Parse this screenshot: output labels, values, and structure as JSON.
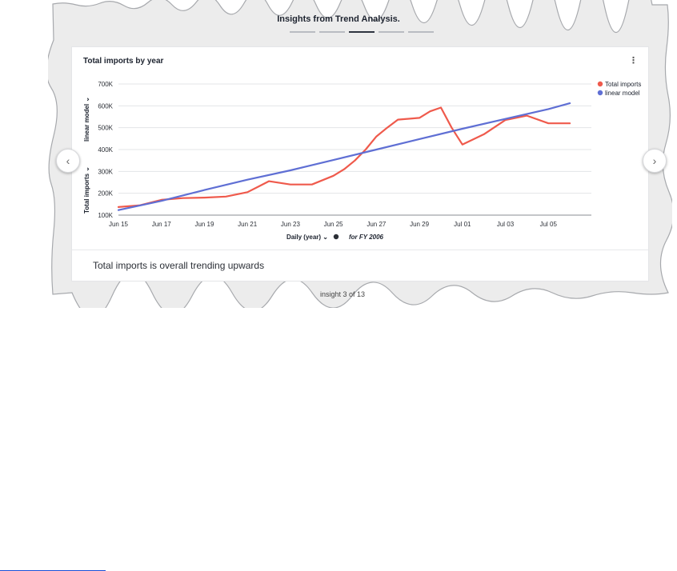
{
  "panel": {
    "title": "Insights from Trend Analysis.",
    "dots": [
      false,
      false,
      true,
      false,
      false
    ]
  },
  "card": {
    "title": "Total imports by year",
    "menu_icon": "kebab-icon",
    "summary": "Total imports is overall trending upwards"
  },
  "footer": {
    "text": "insight 3 of 13"
  },
  "nav": {
    "prev_icon": "chevron-left-icon",
    "next_icon": "chevron-right-icon"
  },
  "chart_data": {
    "type": "line",
    "title": "",
    "xlabel": "Daily (year)",
    "xlabel_note": "for FY 2006",
    "ylabel_primary": "Total imports",
    "ylabel_secondary": "linear model",
    "ylim": [
      100000,
      700000
    ],
    "yticks": [
      100000,
      200000,
      300000,
      400000,
      500000,
      600000,
      700000
    ],
    "ytick_labels": [
      "100K",
      "200K",
      "300K",
      "400K",
      "500K",
      "600K",
      "700K"
    ],
    "xlim": [
      0,
      22.0
    ],
    "xticks": [
      0,
      2,
      4,
      6,
      8,
      10,
      12,
      14,
      16,
      18,
      20
    ],
    "xtick_labels": [
      "Jun 15",
      "Jun 17",
      "Jun 19",
      "Jun 21",
      "Jun 23",
      "Jun 25",
      "Jun 27",
      "Jun 29",
      "Jul 01",
      "Jul 03",
      "Jul 05"
    ],
    "grid": true,
    "legend_position": "top-right",
    "series": [
      {
        "name": "Total imports",
        "color": "#ef5a4c",
        "points": [
          [
            0,
            137000
          ],
          [
            1,
            145000
          ],
          [
            2,
            170000
          ],
          [
            3,
            178000
          ],
          [
            4,
            180000
          ],
          [
            5,
            185000
          ],
          [
            6,
            205000
          ],
          [
            6.5,
            230000
          ],
          [
            7,
            255000
          ],
          [
            8,
            240000
          ],
          [
            9,
            240000
          ],
          [
            10,
            280000
          ],
          [
            10.5,
            310000
          ],
          [
            11,
            350000
          ],
          [
            11.5,
            400000
          ],
          [
            12,
            460000
          ],
          [
            12.5,
            500000
          ],
          [
            13,
            537000
          ],
          [
            14,
            545000
          ],
          [
            14.5,
            575000
          ],
          [
            15,
            592000
          ],
          [
            15.5,
            500000
          ],
          [
            16,
            423000
          ],
          [
            17,
            470000
          ],
          [
            18,
            535000
          ],
          [
            19,
            555000
          ],
          [
            20,
            520000
          ],
          [
            21,
            520000
          ]
        ]
      },
      {
        "name": "linear model",
        "color": "#5f6fd4",
        "points": [
          [
            0,
            123000
          ],
          [
            2,
            165000
          ],
          [
            4,
            215000
          ],
          [
            6,
            262000
          ],
          [
            8,
            305000
          ],
          [
            10,
            352000
          ],
          [
            12,
            400000
          ],
          [
            14,
            448000
          ],
          [
            16,
            495000
          ],
          [
            18,
            540000
          ],
          [
            20,
            585000
          ],
          [
            21,
            612000
          ]
        ]
      }
    ]
  }
}
